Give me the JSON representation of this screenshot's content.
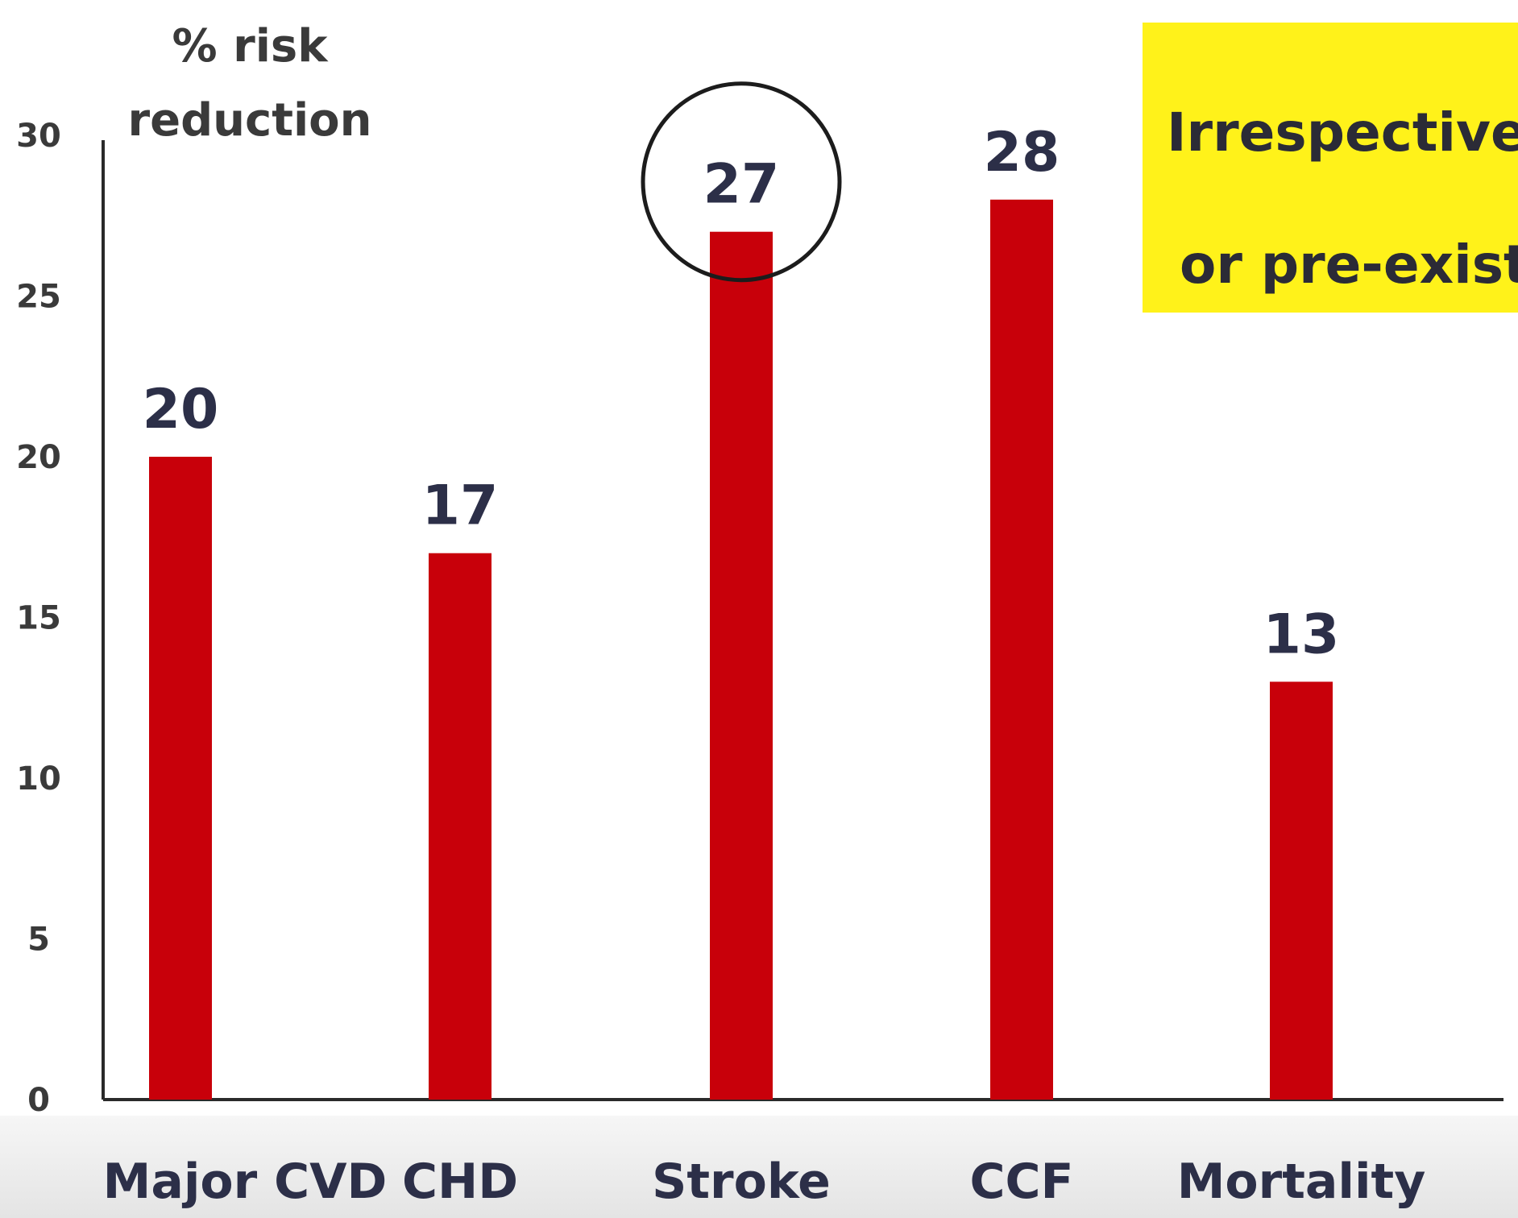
{
  "chart_data": {
    "type": "bar",
    "categories": [
      "Major CVD",
      "CHD",
      "Stroke",
      "CCF",
      "Mortality"
    ],
    "values": [
      20,
      17,
      27,
      28,
      13
    ],
    "title": "",
    "xlabel": "",
    "ylabel": "% risk reduction",
    "ylim": [
      0,
      30
    ],
    "yticks": [
      0,
      5,
      10,
      15,
      20,
      25,
      30
    ],
    "grid": false,
    "legend": "none",
    "highlighted_category": "Stroke",
    "bar_color": "#c8000a",
    "value_label_color": "#2c2f48"
  },
  "ylabel_lines": [
    "% risk",
    "reduction"
  ],
  "callout": {
    "lines": [
      "Irrespective",
      "or pre-exist"
    ],
    "background": "#fff21a"
  }
}
